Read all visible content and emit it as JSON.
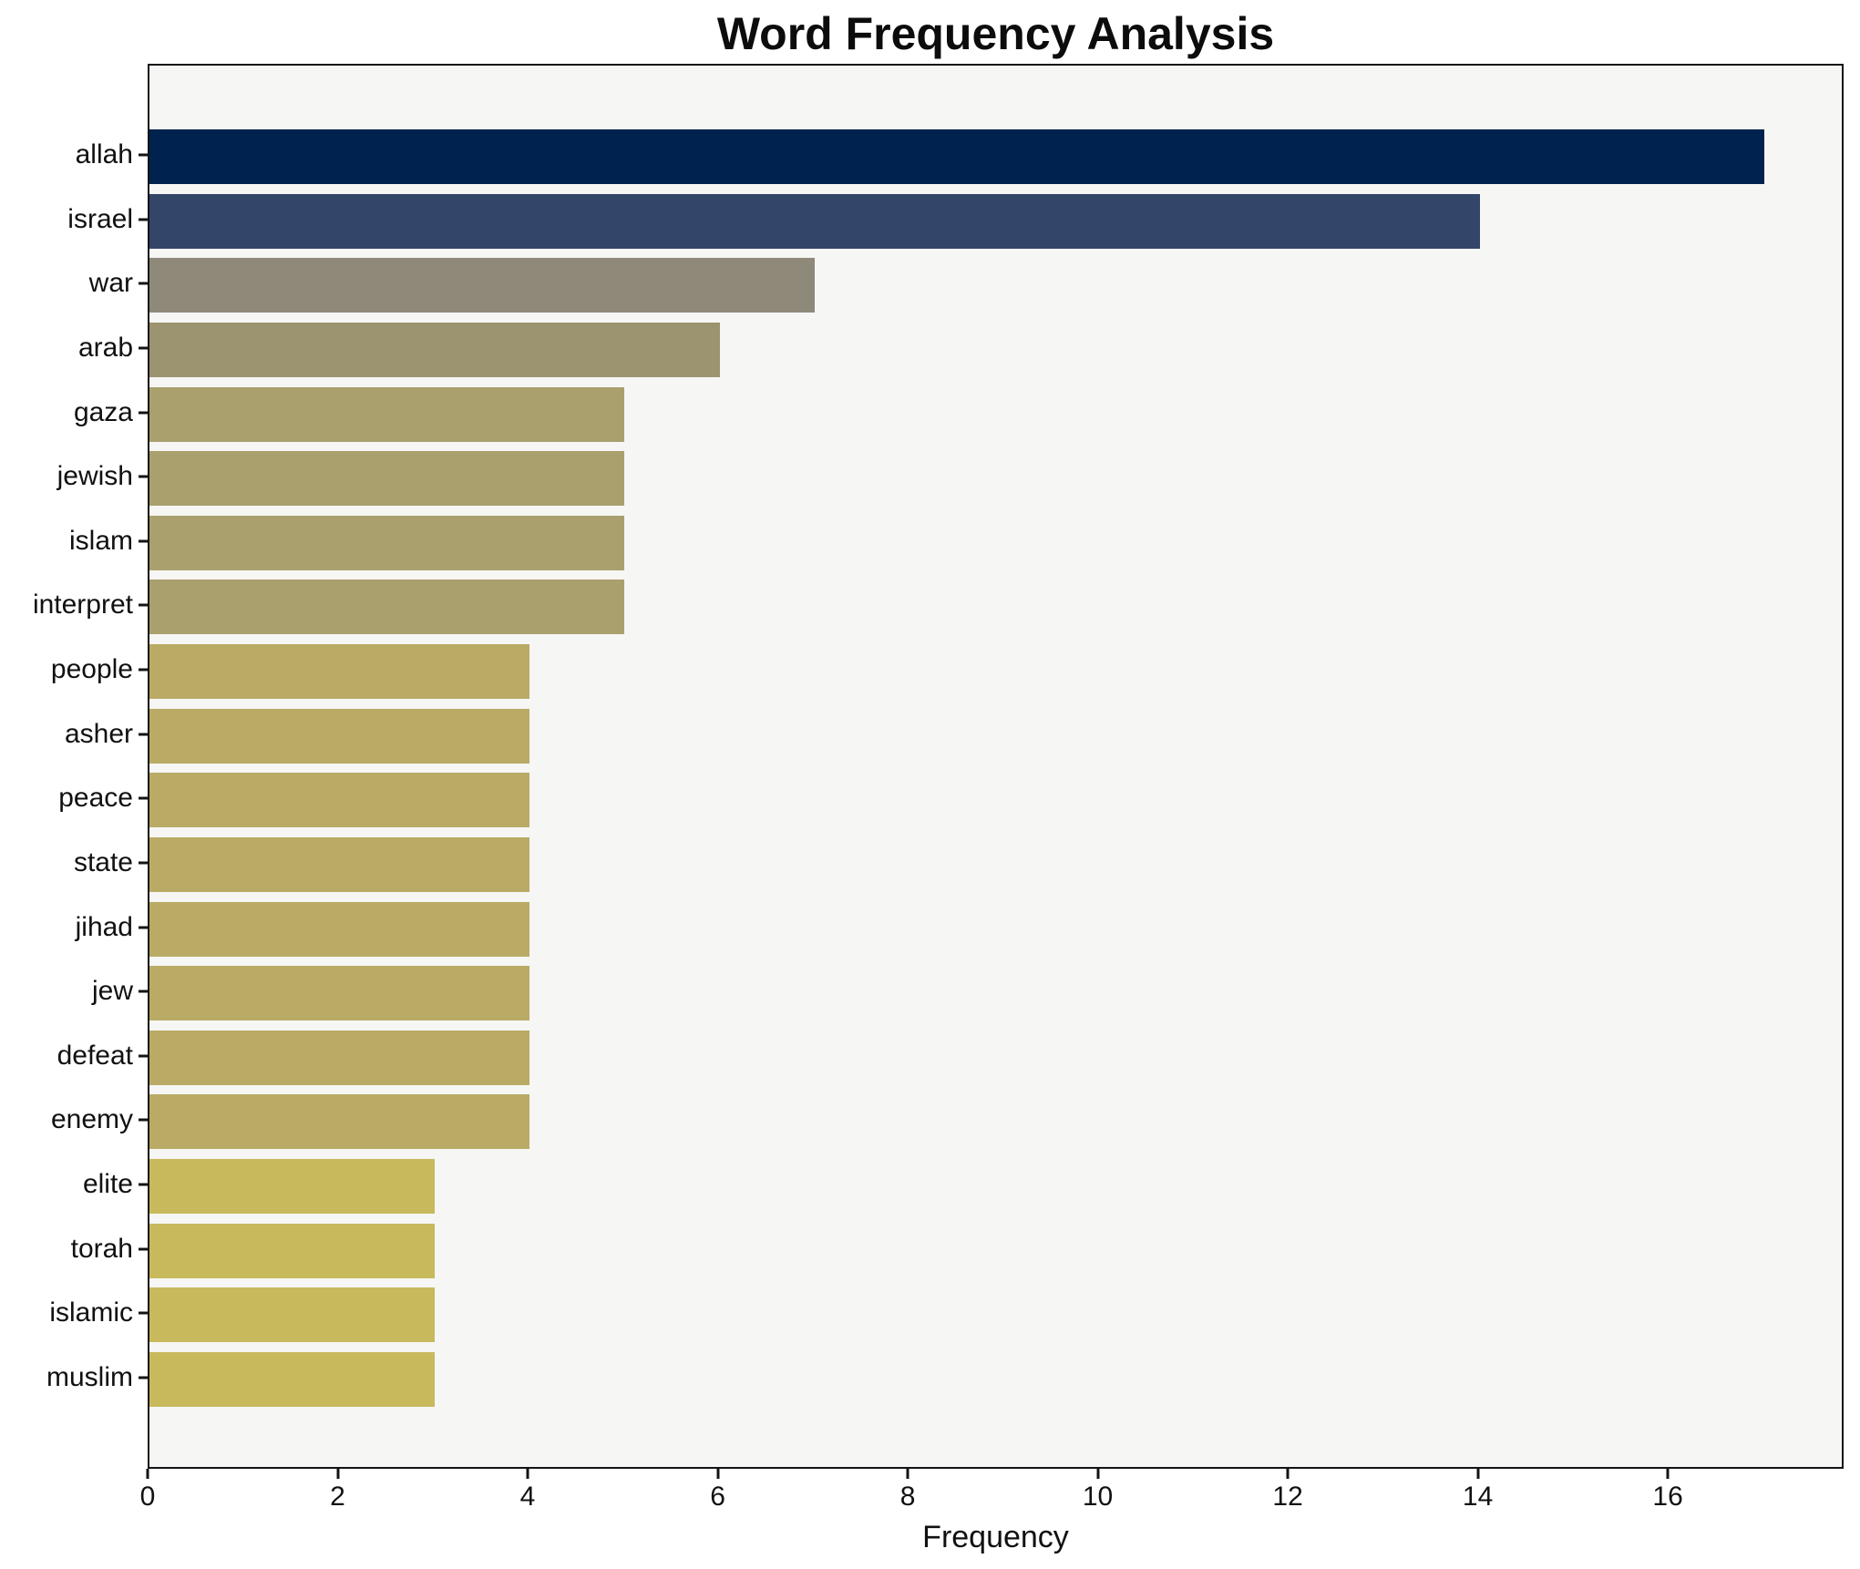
{
  "chart": {
    "title": "Word Frequency Analysis",
    "xlabel": "Frequency"
  },
  "chart_data": {
    "type": "bar",
    "orientation": "horizontal",
    "title": "Word Frequency Analysis",
    "xlabel": "Frequency",
    "ylabel": "",
    "categories": [
      "allah",
      "israel",
      "war",
      "arab",
      "gaza",
      "jewish",
      "islam",
      "interpret",
      "people",
      "asher",
      "peace",
      "state",
      "jihad",
      "jew",
      "defeat",
      "enemy",
      "elite",
      "torah",
      "islamic",
      "muslim"
    ],
    "values": [
      17,
      14,
      7,
      6,
      5,
      5,
      5,
      5,
      4,
      4,
      4,
      4,
      4,
      4,
      4,
      4,
      3,
      3,
      3,
      3
    ],
    "bar_colors": [
      "#00224e",
      "#334569",
      "#8e8979",
      "#9c9470",
      "#a9a06e",
      "#a9a06e",
      "#a9a06e",
      "#a9a06e",
      "#b9ab65",
      "#b9ab65",
      "#b9ab65",
      "#b9ab65",
      "#b9ab65",
      "#b9ab65",
      "#b9ab65",
      "#b9ab65",
      "#c8b95c",
      "#c8b95c",
      "#c8b95c",
      "#c8b95c"
    ],
    "xlim": [
      0,
      17.85
    ],
    "xticks": [
      0,
      2,
      4,
      6,
      8,
      10,
      12,
      14,
      16
    ],
    "grid": false,
    "legend": null,
    "plot_bg": "#f6f6f5",
    "figure_bg": "#ffffff",
    "spine_color": "#141414"
  }
}
